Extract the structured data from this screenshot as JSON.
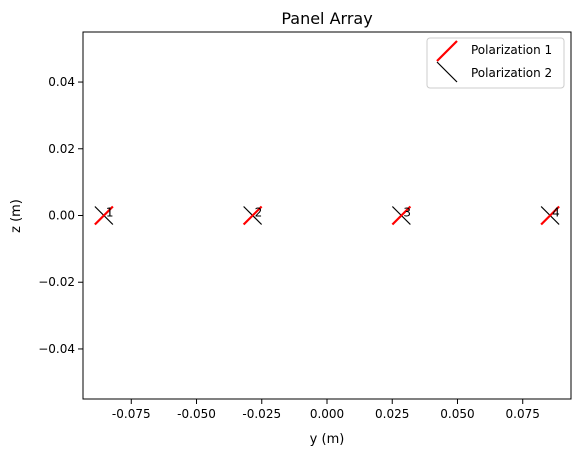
{
  "chart_data": {
    "type": "scatter",
    "title": "Panel Array",
    "xlabel": "y (m)",
    "ylabel": "z (m)",
    "xlim": [
      -0.0935,
      0.0935
    ],
    "ylim": [
      -0.055,
      0.055
    ],
    "xticks": [
      "-0.075",
      "-0.050",
      "-0.025",
      "0.000",
      "0.025",
      "0.050",
      "0.075"
    ],
    "xtick_values": [
      -0.075,
      -0.05,
      -0.025,
      0.0,
      0.025,
      0.05,
      0.075
    ],
    "yticks": [
      "0.04",
      "0.02",
      "0.00",
      "−0.02",
      "−0.04"
    ],
    "ytick_values": [
      0.04,
      0.02,
      0.0,
      -0.02,
      -0.04
    ],
    "grid": false,
    "legend_position": "top-right",
    "elements": [
      {
        "label": "1",
        "y": -0.0855,
        "z": 0.0
      },
      {
        "label": "2",
        "y": -0.0285,
        "z": 0.0
      },
      {
        "label": "3",
        "y": 0.0285,
        "z": 0.0
      },
      {
        "label": "4",
        "y": 0.0855,
        "z": 0.0
      }
    ],
    "series": [
      {
        "name": "Polarization 1",
        "color": "#ff0000",
        "orientation": "+45deg"
      },
      {
        "name": "Polarization 2",
        "color": "#000000",
        "orientation": "-45deg"
      }
    ]
  }
}
